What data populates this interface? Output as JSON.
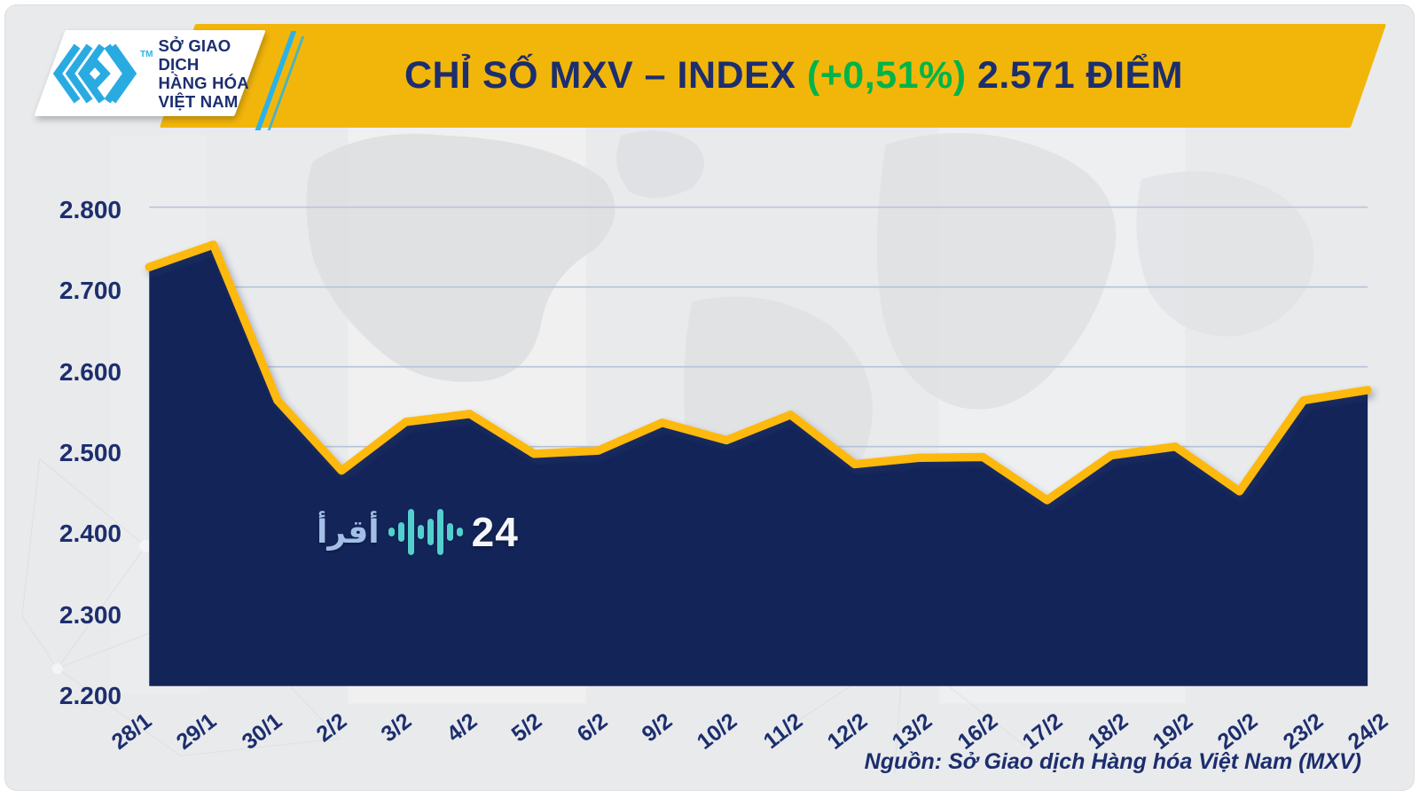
{
  "colors": {
    "banner_yellow": "#F2B60B",
    "navy": "#1C2E6E",
    "green": "#00B44B",
    "line_yellow": "#FDB90B",
    "grid": "#b7c3d7",
    "logo_cyan": "#29ABE2",
    "canvas_gray": "#e9eaec"
  },
  "header": {
    "logo": {
      "tm": "TM",
      "line1": "SỞ GIAO DỊCH",
      "line2": "HÀNG HÓA",
      "line3": "VIỆT NAM"
    },
    "title": {
      "part1": "CHỈ SỐ MXV – INDEX ",
      "part2": "(+0,51%)",
      "part3": " 2.571 ĐIỂM"
    }
  },
  "watermark": {
    "arabic": "أقرأ",
    "number": "24"
  },
  "footer": {
    "source": "Nguồn: Sở Giao dịch Hàng hóa Việt Nam (MXV)"
  },
  "chart_data": {
    "type": "area",
    "title": "CHỈ SỐ MXV – INDEX (+0,51%) 2.571 ĐIỂM",
    "xlabel": "",
    "ylabel": "",
    "unit": "điểm",
    "ylim": [
      2200,
      2800
    ],
    "grid": true,
    "categories": [
      "28/1",
      "29/1",
      "30/1",
      "2/2",
      "3/2",
      "4/2",
      "5/2",
      "6/2",
      "9/2",
      "10/2",
      "11/2",
      "12/2",
      "13/2",
      "16/2",
      "17/2",
      "18/2",
      "19/2",
      "20/2",
      "23/2",
      "24/2"
    ],
    "values": [
      2725,
      2753,
      2558,
      2470,
      2531,
      2541,
      2491,
      2495,
      2530,
      2508,
      2540,
      2478,
      2486,
      2487,
      2433,
      2489,
      2500,
      2444,
      2558,
      2571
    ],
    "y_ticks": [
      {
        "v": 2800,
        "label": "2.800"
      },
      {
        "v": 2700,
        "label": "2.700"
      },
      {
        "v": 2600,
        "label": "2.600"
      },
      {
        "v": 2500,
        "label": "2.500"
      },
      {
        "v": 2400,
        "label": "2.400"
      },
      {
        "v": 2300,
        "label": "2.300"
      },
      {
        "v": 2200,
        "label": "2.200"
      }
    ],
    "line_color": "#FDB90B",
    "area_gradient": [
      "#8e99b2",
      "#4a5b8e",
      "#132459"
    ],
    "legend": "none"
  }
}
